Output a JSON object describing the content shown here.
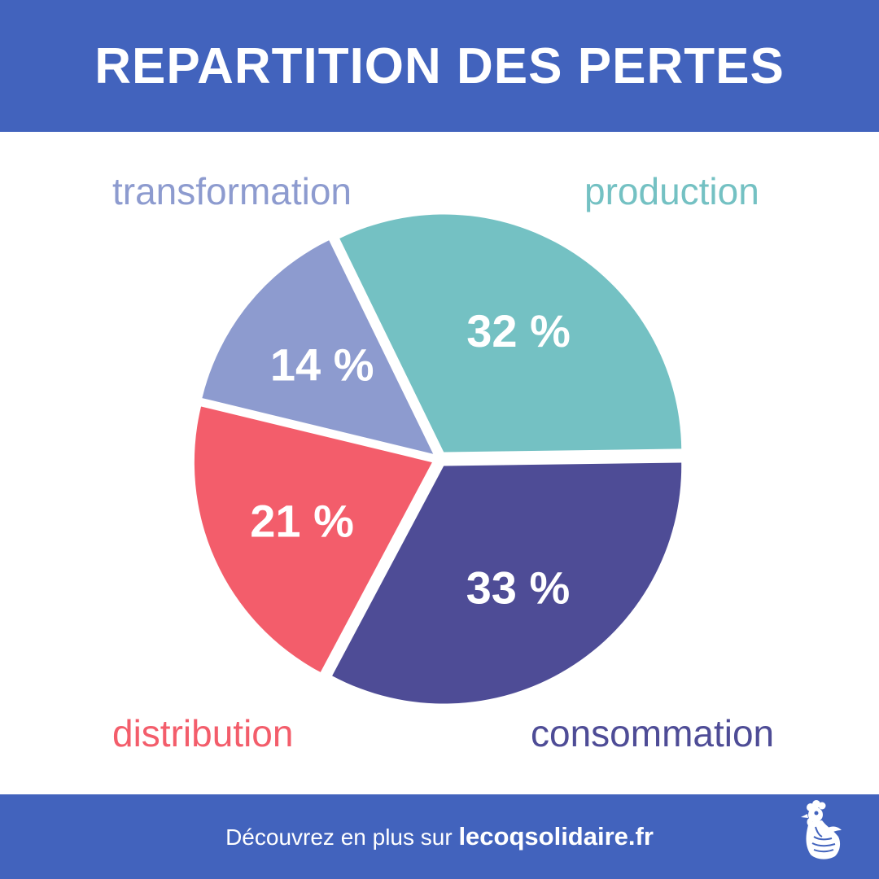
{
  "header": {
    "title": "REPARTITION DES PERTES",
    "color": "#4263bd"
  },
  "chart_data": {
    "type": "pie",
    "title": "REPARTITION DES PERTES",
    "categories": [
      "production",
      "consommation",
      "distribution",
      "transformation"
    ],
    "values": [
      32,
      33,
      21,
      14
    ],
    "value_labels": [
      "32 %",
      "33 %",
      "21 %",
      "14 %"
    ],
    "colors": [
      "#74c1c3",
      "#4e4c96",
      "#f35d6b",
      "#8d9bcf"
    ],
    "unit": "%",
    "legend": "labels placed at corners around the pie"
  },
  "footer": {
    "text": "Découvrez en plus sur",
    "link": "lecoqsolidaire.fr",
    "logo_icon": "rooster-hands-icon",
    "color": "#4263bd"
  }
}
